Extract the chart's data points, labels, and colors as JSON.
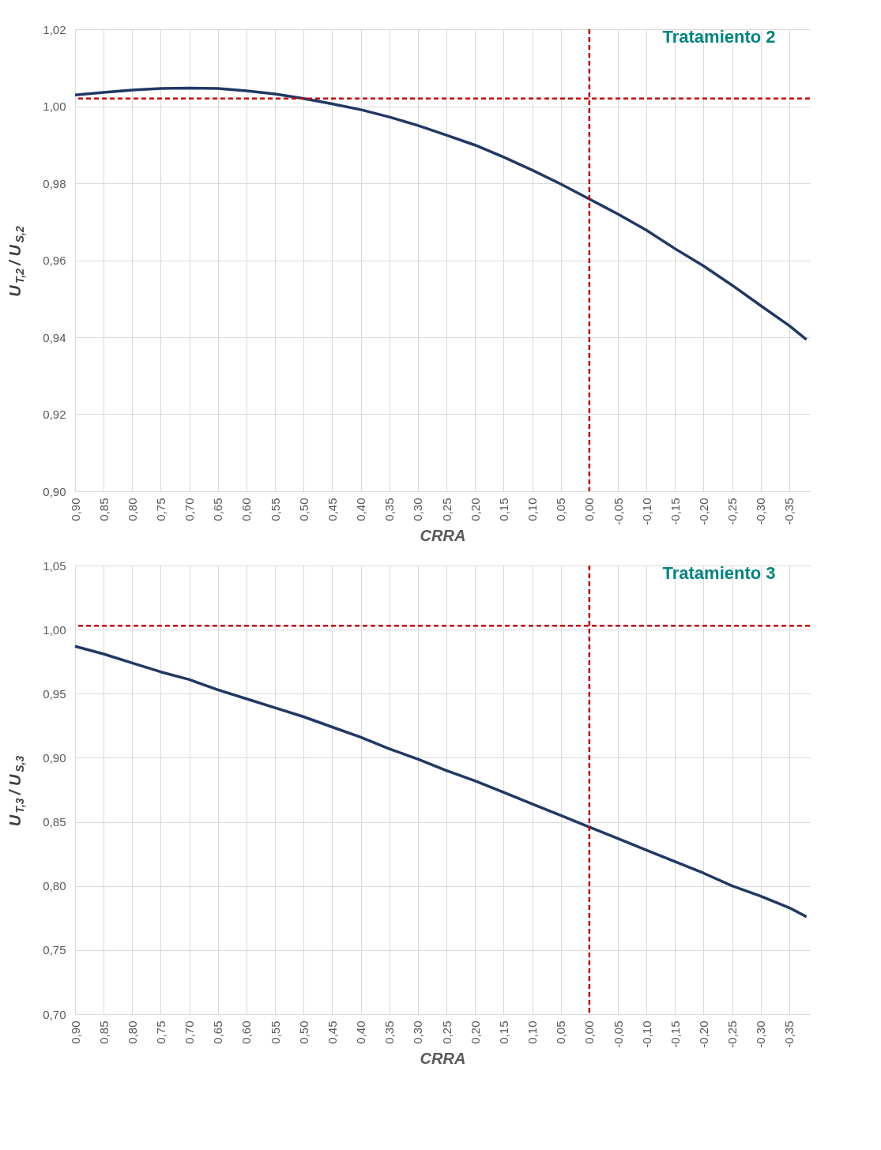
{
  "chart_data": [
    {
      "type": "line",
      "xlabel": "CRRA",
      "ylabel": "U$_{T,2}$/ U$_{S,2}$",
      "annotations": [
        "Tratamiento 2"
      ],
      "grid": true,
      "legend": false,
      "line_style": "solid",
      "marker": "none",
      "xlim": [
        0.9,
        -0.386
      ],
      "ylim": [
        0.9,
        1.02
      ],
      "xticks": [
        {
          "value": 0.9,
          "label": "0,90"
        },
        {
          "value": 0.85,
          "label": "0,85"
        },
        {
          "value": 0.8,
          "label": "0,80"
        },
        {
          "value": 0.75,
          "label": "0,75"
        },
        {
          "value": 0.7,
          "label": "0,70"
        },
        {
          "value": 0.65,
          "label": "0,65"
        },
        {
          "value": 0.6,
          "label": "0,60"
        },
        {
          "value": 0.55,
          "label": "0,55"
        },
        {
          "value": 0.5,
          "label": "0,50"
        },
        {
          "value": 0.45,
          "label": "0,45"
        },
        {
          "value": 0.4,
          "label": "0,40"
        },
        {
          "value": 0.35,
          "label": "0,35"
        },
        {
          "value": 0.3,
          "label": "0,30"
        },
        {
          "value": 0.25,
          "label": "0,25"
        },
        {
          "value": 0.2,
          "label": "0,20"
        },
        {
          "value": 0.15,
          "label": "0,15"
        },
        {
          "value": 0.1,
          "label": "0,10"
        },
        {
          "value": 0.05,
          "label": "0,05"
        },
        {
          "value": 0.0,
          "label": "0,00"
        },
        {
          "value": -0.05,
          "label": "-0,05"
        },
        {
          "value": -0.1,
          "label": "-0,10"
        },
        {
          "value": -0.15,
          "label": "-0,15"
        },
        {
          "value": -0.2,
          "label": "-0,20"
        },
        {
          "value": -0.25,
          "label": "-0,25"
        },
        {
          "value": -0.3,
          "label": "-0,30"
        },
        {
          "value": -0.35,
          "label": "-0,35"
        }
      ],
      "yticks": [
        {
          "value": 0.9,
          "label": "0,90"
        },
        {
          "value": 0.92,
          "label": "0,92"
        },
        {
          "value": 0.94,
          "label": "0,94"
        },
        {
          "value": 0.96,
          "label": "0,96"
        },
        {
          "value": 0.98,
          "label": "0,98"
        },
        {
          "value": 1.0,
          "label": "1,00"
        },
        {
          "value": 1.02,
          "label": "1,02"
        }
      ],
      "x": [
        0.9,
        0.85,
        0.8,
        0.75,
        0.7,
        0.65,
        0.6,
        0.55,
        0.5,
        0.45,
        0.4,
        0.35,
        0.3,
        0.25,
        0.2,
        0.15,
        0.1,
        0.05,
        0.0,
        -0.05,
        -0.1,
        -0.15,
        -0.2,
        -0.25,
        -0.3,
        -0.35,
        -0.38
      ],
      "series": [
        {
          "color": "#203864",
          "values": [
            1.0029,
            1.0036,
            1.0042,
            1.0046,
            1.0047,
            1.0046,
            1.004,
            1.0032,
            1.002,
            1.0006,
            0.9991,
            0.9972,
            0.995,
            0.9925,
            0.9899,
            0.9868,
            0.9834,
            0.9798,
            0.9759,
            0.972,
            0.9678,
            0.963,
            0.9585,
            0.9535,
            0.9482,
            0.943,
            0.9394
          ]
        }
      ],
      "ref_lines": [
        {
          "axis": "x",
          "value": 0.0,
          "color": "#c00000",
          "line_style": "dashed"
        },
        {
          "axis": "y",
          "value": 1.002,
          "color": "#c00000",
          "line_style": "dashed"
        }
      ]
    },
    {
      "type": "line",
      "xlabel": "CRRA",
      "ylabel": "U$_{T,3}$/ U$_{S,3}$",
      "annotations": [
        "Tratamiento 3"
      ],
      "grid": true,
      "legend": false,
      "line_style": "solid",
      "marker": "none",
      "xlim": [
        0.9,
        -0.386
      ],
      "ylim": [
        0.7,
        1.05
      ],
      "xticks": [
        {
          "value": 0.9,
          "label": "0,90"
        },
        {
          "value": 0.85,
          "label": "0,85"
        },
        {
          "value": 0.8,
          "label": "0,80"
        },
        {
          "value": 0.75,
          "label": "0,75"
        },
        {
          "value": 0.7,
          "label": "0,70"
        },
        {
          "value": 0.65,
          "label": "0,65"
        },
        {
          "value": 0.6,
          "label": "0,60"
        },
        {
          "value": 0.55,
          "label": "0,55"
        },
        {
          "value": 0.5,
          "label": "0,50"
        },
        {
          "value": 0.45,
          "label": "0,45"
        },
        {
          "value": 0.4,
          "label": "0,40"
        },
        {
          "value": 0.35,
          "label": "0,35"
        },
        {
          "value": 0.3,
          "label": "0,30"
        },
        {
          "value": 0.25,
          "label": "0,25"
        },
        {
          "value": 0.2,
          "label": "0,20"
        },
        {
          "value": 0.15,
          "label": "0,15"
        },
        {
          "value": 0.1,
          "label": "0,10"
        },
        {
          "value": 0.05,
          "label": "0,05"
        },
        {
          "value": 0.0,
          "label": "0,00"
        },
        {
          "value": -0.05,
          "label": "-0,05"
        },
        {
          "value": -0.1,
          "label": "-0,10"
        },
        {
          "value": -0.15,
          "label": "-0,15"
        },
        {
          "value": -0.2,
          "label": "-0,20"
        },
        {
          "value": -0.25,
          "label": "-0,25"
        },
        {
          "value": -0.3,
          "label": "-0,30"
        },
        {
          "value": -0.35,
          "label": "-0,35"
        }
      ],
      "yticks": [
        {
          "value": 0.7,
          "label": "0,70"
        },
        {
          "value": 0.75,
          "label": "0,75"
        },
        {
          "value": 0.8,
          "label": "0,80"
        },
        {
          "value": 0.85,
          "label": "0,85"
        },
        {
          "value": 0.9,
          "label": "0,90"
        },
        {
          "value": 0.95,
          "label": "0,95"
        },
        {
          "value": 1.0,
          "label": "1,00"
        },
        {
          "value": 1.05,
          "label": "1,05"
        }
      ],
      "x": [
        0.9,
        0.85,
        0.8,
        0.75,
        0.7,
        0.65,
        0.6,
        0.55,
        0.5,
        0.45,
        0.4,
        0.35,
        0.3,
        0.25,
        0.2,
        0.15,
        0.1,
        0.05,
        0.0,
        -0.05,
        -0.1,
        -0.15,
        -0.2,
        -0.25,
        -0.3,
        -0.35,
        -0.38
      ],
      "series": [
        {
          "color": "#203864",
          "values": [
            0.987,
            0.981,
            0.974,
            0.967,
            0.961,
            0.953,
            0.946,
            0.939,
            0.932,
            0.924,
            0.916,
            0.907,
            0.899,
            0.89,
            0.882,
            0.873,
            0.864,
            0.855,
            0.846,
            0.837,
            0.828,
            0.819,
            0.81,
            0.8,
            0.792,
            0.783,
            0.776
          ]
        }
      ],
      "ref_lines": [
        {
          "axis": "x",
          "value": 0.0,
          "color": "#c00000",
          "line_style": "dashed"
        },
        {
          "axis": "y",
          "value": 1.003,
          "color": "#c00000",
          "line_style": "dashed"
        }
      ]
    }
  ]
}
